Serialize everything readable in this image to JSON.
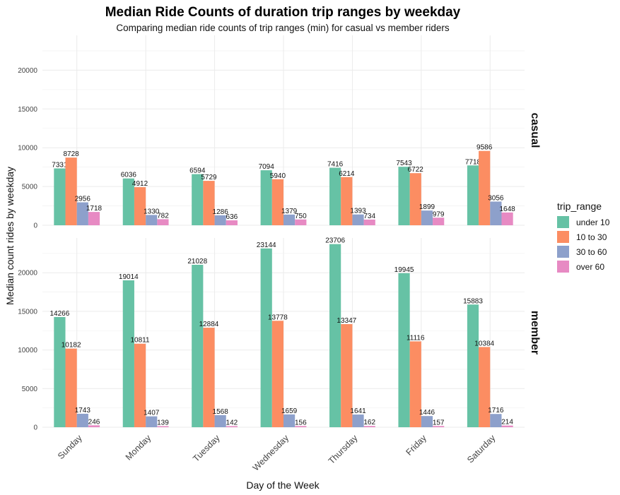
{
  "chart_data": {
    "type": "bar",
    "title": "Median Ride Counts of duration trip ranges by weekday",
    "subtitle": "Comparing median ride counts of trip ranges (min) for casual vs member riders",
    "xlabel": "Day of the Week",
    "ylabel": "Median count rides by weekday",
    "ylim": [
      0,
      24500
    ],
    "yticks": [
      0,
      5000,
      10000,
      15000,
      20000
    ],
    "grid": true,
    "legend_position": "right",
    "legend_title": "trip_range",
    "categories": [
      "Sunday",
      "Monday",
      "Tuesday",
      "Wednesday",
      "Thursday",
      "Friday",
      "Saturday"
    ],
    "series_meta": [
      {
        "name": "under 10",
        "color": "#66c2a5"
      },
      {
        "name": "10 to 30",
        "color": "#fc8d62"
      },
      {
        "name": "30 to 60",
        "color": "#8da0cb"
      },
      {
        "name": "over 60",
        "color": "#e78ac3"
      }
    ],
    "panels": [
      {
        "name": "casual",
        "series": [
          {
            "name": "under 10",
            "values": [
              7331,
              6036,
              6594,
              7094,
              7416,
              7543,
              7718
            ]
          },
          {
            "name": "10 to 30",
            "values": [
              8728,
              4912,
              5729,
              5940,
              6214,
              6722,
              9586
            ]
          },
          {
            "name": "30 to 60",
            "values": [
              2956,
              1330,
              1286,
              1379,
              1393,
              1899,
              3056
            ]
          },
          {
            "name": "over 60",
            "values": [
              1718,
              782,
              636,
              750,
              734,
              979,
              1648
            ]
          }
        ]
      },
      {
        "name": "member",
        "series": [
          {
            "name": "under 10",
            "values": [
              14266,
              19014,
              21028,
              23144,
              23706,
              19945,
              15883
            ]
          },
          {
            "name": "10 to 30",
            "values": [
              10182,
              10811,
              12884,
              13778,
              13347,
              11116,
              10384
            ]
          },
          {
            "name": "30 to 60",
            "values": [
              1743,
              1407,
              1568,
              1659,
              1641,
              1446,
              1716
            ]
          },
          {
            "name": "over 60",
            "values": [
              246,
              139,
              142,
              156,
              162,
              157,
              214
            ]
          }
        ]
      }
    ]
  }
}
